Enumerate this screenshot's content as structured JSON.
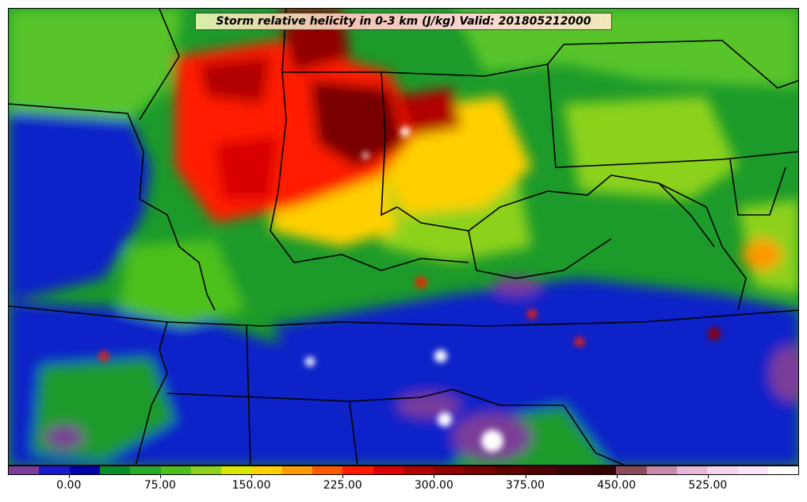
{
  "title": "Storm relative helicity in 0-3 km (J/kg) Valid: 201805212000",
  "colorbar": {
    "colors": [
      "#7a3e98",
      "#1a1acc",
      "#0000aa",
      "#0a8c2a",
      "#2aa82a",
      "#4ec01e",
      "#8cd21e",
      "#d8e800",
      "#ffd000",
      "#ff9a00",
      "#ff5a00",
      "#ff1a00",
      "#d80000",
      "#b00000",
      "#900000",
      "#780000",
      "#600000",
      "#500000",
      "#400000",
      "#350000",
      "#8a4a5a",
      "#c88aa8",
      "#e8b8d8",
      "#f6d6ee",
      "#fae6f6",
      "#ffffff"
    ],
    "labels": [
      "0.00",
      "75.00",
      "150.00",
      "225.00",
      "300.00",
      "375.00",
      "450.00",
      "525.00"
    ]
  }
}
